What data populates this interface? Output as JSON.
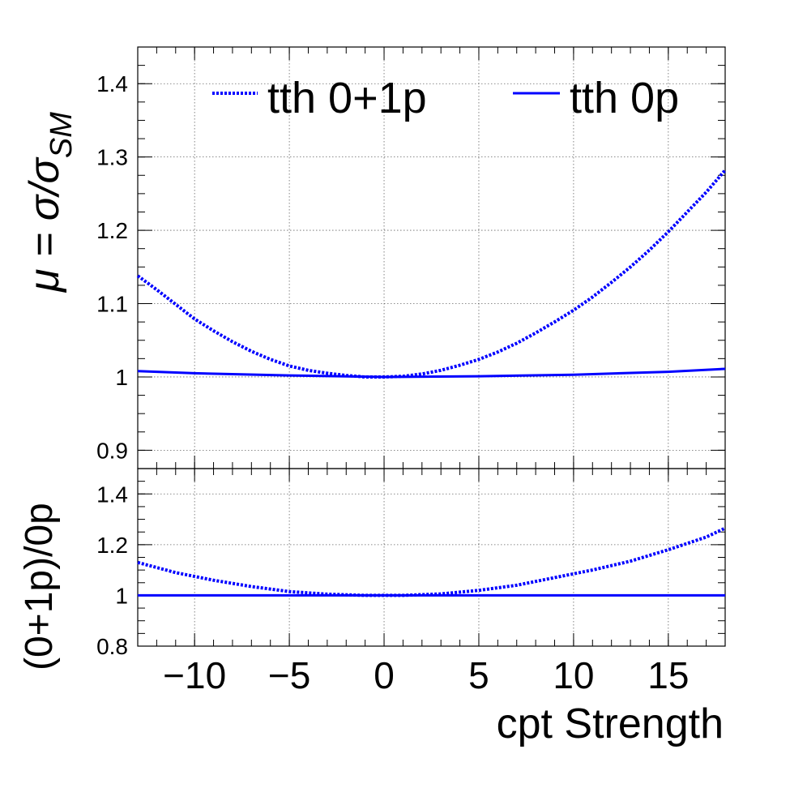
{
  "chart_data": [
    {
      "type": "line",
      "panel": "main",
      "ylabel": "μ = σ/σ",
      "ylabel_subscript": "SM",
      "xlim": [
        -13,
        18
      ],
      "ylim": [
        0.875,
        1.45
      ],
      "yticks": [
        0.9,
        1,
        1.1,
        1.2,
        1.3,
        1.4
      ],
      "ytick_labels": [
        "0.9",
        "1",
        "1.1",
        "1.2",
        "1.3",
        "1.4"
      ],
      "grid": true,
      "legend_position": "top",
      "series": [
        {
          "name": "tth 0+1p",
          "style": "dotted",
          "x": [
            -13,
            -12,
            -11,
            -10,
            -9,
            -8,
            -7,
            -6,
            -5,
            -4,
            -3,
            -2,
            -1,
            0,
            1,
            2,
            3,
            4,
            5,
            6,
            7,
            8,
            9,
            10,
            11,
            12,
            13,
            14,
            15,
            16,
            17,
            18
          ],
          "values": [
            1.138,
            1.119,
            1.099,
            1.079,
            1.063,
            1.048,
            1.035,
            1.024,
            1.015,
            1.009,
            1.005,
            1.002,
            1.0,
            1.0,
            1.001,
            1.004,
            1.009,
            1.016,
            1.024,
            1.034,
            1.046,
            1.06,
            1.075,
            1.091,
            1.109,
            1.129,
            1.15,
            1.173,
            1.198,
            1.225,
            1.252,
            1.282
          ]
        },
        {
          "name": "tth 0p",
          "style": "solid",
          "x": [
            -13,
            -10,
            -5,
            0,
            5,
            10,
            15,
            18
          ],
          "values": [
            1.008,
            1.005,
            1.002,
            1.0,
            1.001,
            1.003,
            1.007,
            1.011
          ]
        }
      ]
    },
    {
      "type": "line",
      "panel": "ratio",
      "xlabel": "cpt Strength",
      "ylabel": "(0+1p)/0p",
      "xlim": [
        -13,
        18
      ],
      "ylim": [
        0.8,
        1.5
      ],
      "xticks": [
        -10,
        -5,
        0,
        5,
        10,
        15
      ],
      "xtick_labels": [
        "−10",
        "−5",
        "0",
        "5",
        "10",
        "15"
      ],
      "yticks": [
        0.8,
        1,
        1.2,
        1.4
      ],
      "ytick_labels": [
        "0.8",
        "1",
        "1.2",
        "1.4"
      ],
      "grid": true,
      "series": [
        {
          "style": "dotted",
          "x": [
            -13,
            -11,
            -9,
            -7,
            -5,
            -3,
            -1,
            1,
            3,
            5,
            7,
            9,
            11,
            13,
            15,
            17,
            18
          ],
          "values": [
            1.13,
            1.09,
            1.06,
            1.035,
            1.015,
            1.005,
            1.0,
            1.0,
            1.006,
            1.02,
            1.04,
            1.07,
            1.1,
            1.135,
            1.18,
            1.23,
            1.265
          ]
        },
        {
          "style": "solid",
          "x": [
            -13,
            18
          ],
          "values": [
            1.0,
            1.0
          ]
        }
      ]
    }
  ],
  "colors": {
    "series": "#0000ff",
    "axis": "#000000"
  }
}
